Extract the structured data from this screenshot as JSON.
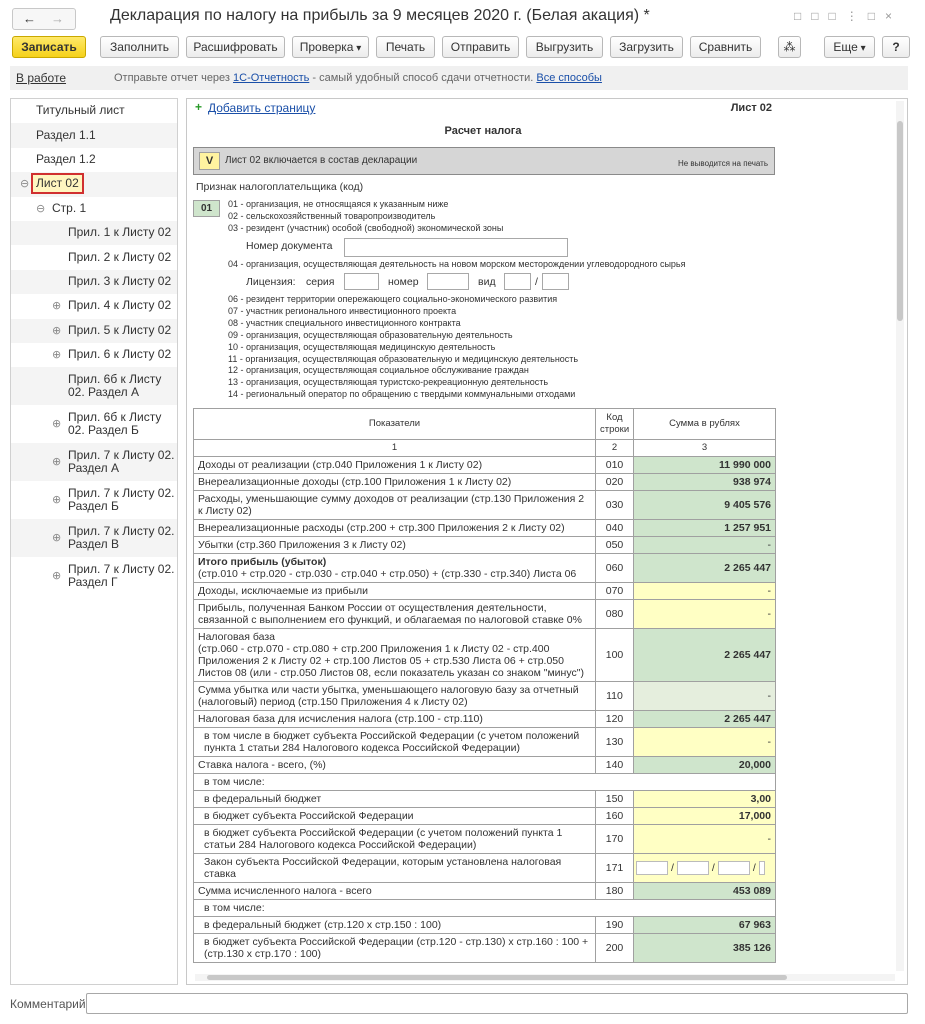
{
  "header": {
    "title": "Декларация по налогу на прибыль за 9 месяцев 2020 г. (Белая акация) *",
    "toolbar": [
      "Записать",
      "Заполнить",
      "Расшифровать",
      "Проверка",
      "Печать",
      "Отправить",
      "Выгрузить",
      "Загрузить",
      "Сравнить",
      "Еще",
      "?"
    ]
  },
  "info_bar": {
    "status": "В работе",
    "text": "Отправьте отчет через",
    "link": "1С-Отчетность",
    "text2": "- самый удобный способ сдачи отчетности.",
    "link2": "Все способы"
  },
  "tree": [
    {
      "label": "Титульный лист",
      "level": 0
    },
    {
      "label": "Раздел 1.1",
      "level": 0
    },
    {
      "label": "Раздел 1.2",
      "level": 0
    },
    {
      "label": "Лист 02",
      "level": 0,
      "expanded": true,
      "selected": true
    },
    {
      "label": "Стр. 1",
      "level": 1,
      "expanded": true
    },
    {
      "label": "Прил. 1 к Листу 02",
      "level": 2
    },
    {
      "label": "Прил. 2 к Листу 02",
      "level": 2
    },
    {
      "label": "Прил. 3 к Листу 02",
      "level": 2
    },
    {
      "label": "Прил. 4 к Листу 02",
      "level": 2,
      "expanded": false
    },
    {
      "label": "Прил. 5 к Листу 02",
      "level": 2,
      "expanded": false
    },
    {
      "label": "Прил. 6 к Листу 02",
      "level": 2,
      "expanded": false
    },
    {
      "label": "Прил. 6б к Листу 02. Раздел А",
      "level": 2
    },
    {
      "label": "Прил. 6б к Листу 02. Раздел Б",
      "level": 2,
      "expanded": false
    },
    {
      "label": "Прил. 7 к Листу 02. Раздел А",
      "level": 2,
      "expanded": false
    },
    {
      "label": "Прил. 7 к Листу 02. Раздел Б",
      "level": 2,
      "expanded": false
    },
    {
      "label": "Прил. 7 к Листу 02. Раздел В",
      "level": 2,
      "expanded": false
    },
    {
      "label": "Прил. 7 к Листу 02. Раздел Г",
      "level": 2,
      "expanded": false
    }
  ],
  "sheet": {
    "add_page": "Добавить страницу",
    "sheet_label": "Лист 02",
    "heading": "Расчет налога",
    "include_mark": "V",
    "include_text": "Лист 02 включается в состав декларации",
    "no_print": "Не выводится на печать",
    "taxpayer_label": "Признак налогоплательщика (код)",
    "taxpayer_code": "01",
    "codes_a": [
      "01 - организация, не относящаяся к указанным ниже",
      "02 - сельскохозяйственный товаропроизводитель",
      "03 - резидент (участник) особой (свободной) экономической зоны"
    ],
    "doc_number_label": "Номер документа",
    "code_04": "04 - организация, осуществляющая деятельность на новом морском месторождении углеводородного сырья",
    "license": {
      "label": "Лицензия:",
      "series": "серия",
      "number": "номер",
      "kind": "вид",
      "slash": "/"
    },
    "codes_b": [
      "06 - резидент территории опережающего социально-экономического развития",
      "07 - участник регионального инвестиционного проекта",
      "08 - участник специального инвестиционного контракта",
      "09 - организация, осуществляющая образовательную деятельность",
      "10 - организация, осуществляющая медицинскую деятельность",
      "11 - организация, осуществляющая образовательную и медицинскую деятельность",
      "12 - организация, осуществляющая социальное обслуживание граждан",
      "13 - организация, осуществляющая туристско-рекреационную деятельность",
      "14 - региональный оператор по обращению с твердыми коммунальными отходами"
    ]
  },
  "table": {
    "headers": [
      "Показатели",
      "Код строки",
      "Сумма в рублях"
    ],
    "column_numbers": [
      "1",
      "2",
      "3"
    ],
    "rows": [
      {
        "label": "Доходы от реализации (стр.040 Приложения 1 к Листу 02)",
        "code": "010",
        "value": "11 990 000",
        "fill": "#cfe5cc"
      },
      {
        "label": "Внереализационные доходы (стр.100 Приложения 1 к Листу 02)",
        "code": "020",
        "value": "938 974",
        "fill": "#cfe5cc"
      },
      {
        "label": "Расходы, уменьшающие сумму доходов от реализации (стр.130 Приложения 2 к Листу 02)",
        "code": "030",
        "value": "9 405 576",
        "fill": "#cfe5cc"
      },
      {
        "label": "Внереализационные расходы (стр.200 + стр.300 Приложения 2 к Листу 02)",
        "code": "040",
        "value": "1 257 951",
        "fill": "#cfe5cc"
      },
      {
        "label": "Убытки (стр.360 Приложения 3 к Листу 02)",
        "code": "050",
        "value": "-",
        "fill": "#cfe5cc"
      },
      {
        "title": "Итого прибыль (убыток)",
        "bold_title": true,
        "label": "(стр.010 + стр.020 - стр.030 - стр.040 + стр.050) + (стр.330 - стр.340) Листа 06",
        "code": "060",
        "value": "2 265 447",
        "fill": "#cfe5cc"
      },
      {
        "label": "Доходы, исключаемые из прибыли",
        "code": "070",
        "value": "-",
        "fill": "#ffffc4"
      },
      {
        "label": "Прибыль, полученная Банком России от осуществления деятельности, связанной с выполнением его функций, и облагаемая по налоговой ставке 0%",
        "code": "080",
        "value": "-",
        "fill": "#ffffc4"
      },
      {
        "title": "Налоговая база",
        "label": "(стр.060 - стр.070 - стр.080 + стр.200 Приложения 1 к Листу 02 - стр.400 Приложения 2 к Листу 02 + стр.100 Листов 05 + стр.530 Листа 06 + стр.050 Листов 08 (или - стр.050 Листов 08, если показатель указан со знаком \"минус\")",
        "code": "100",
        "value": "2 265 447",
        "fill": "#cfe5cc"
      },
      {
        "label": "Сумма убытка или части убытка, уменьшающего налоговую базу за отчетный (налоговый) период (стр.150 Приложения 4 к Листу 02)",
        "code": "110",
        "value": "-",
        "fill": "#e5eedd"
      },
      {
        "label": "Налоговая база для исчисления налога (стр.100 - стр.110)",
        "code": "120",
        "value": "2 265 447",
        "fill": "#cfe5cc"
      },
      {
        "label": "в том числе в бюджет субъекта Российской Федерации (с учетом положений пункта 1 статьи 284 Налогового кодекса Российской Федерации)",
        "indent": true,
        "code": "130",
        "value": "-",
        "fill": "#ffffc4"
      },
      {
        "label": "Ставка налога - всего, (%)",
        "code": "140",
        "value": "20,000",
        "fill": "#cfe5cc"
      },
      {
        "label": "в том числе:",
        "indent": true
      },
      {
        "label": "в федеральный бюджет",
        "indent": true,
        "code": "150",
        "value": "3,00",
        "fill": "#ffffc4"
      },
      {
        "label": "в бюджет субъекта Российской Федерации",
        "indent": true,
        "code": "160",
        "value": "17,000",
        "fill": "#ffffc4"
      },
      {
        "label": "в бюджет субъекта Российской Федерации (с учетом положений пункта 1 статьи 284 Налогового кодекса Российской Федерации)",
        "indent": true,
        "code": "170",
        "value": "-",
        "fill": "#ffffc4"
      },
      {
        "label": "Закон субъекта Российской Федерации, которым установлена налоговая ставка",
        "indent": true,
        "code": "171",
        "separators": [
          "/",
          "/",
          "/"
        ],
        "fill": "#ffffc4"
      },
      {
        "label": "Сумма исчисленного налога - всего",
        "code": "180",
        "value": "453 089",
        "fill": "#cfe5cc"
      },
      {
        "label": "в том числе:",
        "indent": true
      },
      {
        "label": "в федеральный бюджет (стр.120 х стр.150 : 100)",
        "indent": true,
        "code": "190",
        "value": "67 963",
        "fill": "#cfe5cc"
      },
      {
        "label": "в бюджет субъекта Российской Федерации (стр.120 - стр.130) х стр.160 : 100 + (стр.130 х стр.170 : 100)",
        "indent": true,
        "code": "200",
        "value": "385 126",
        "fill": "#cfe5cc"
      }
    ]
  },
  "comment_label": "Комментарий:"
}
